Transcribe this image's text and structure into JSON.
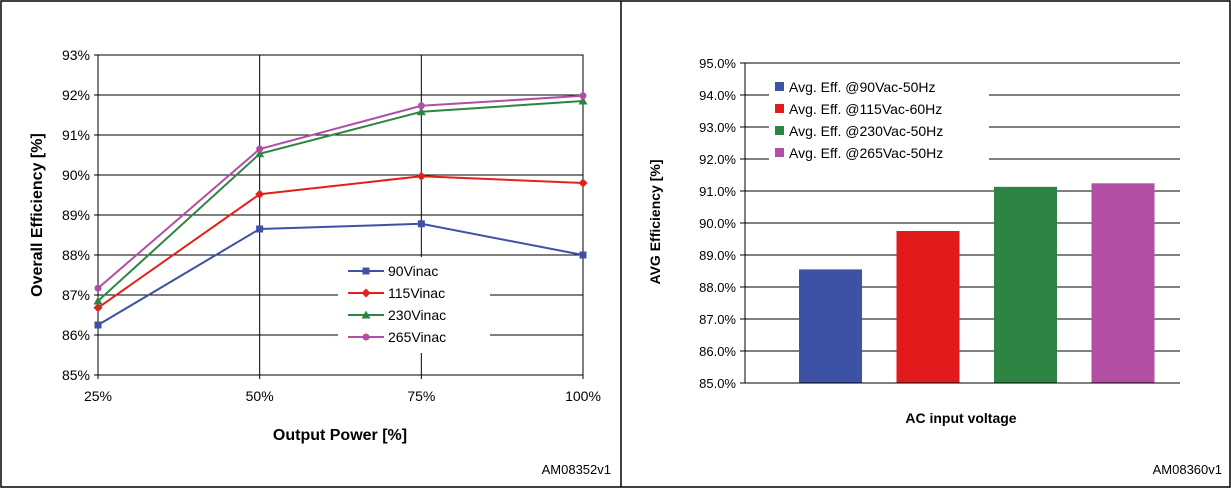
{
  "chart_data": [
    {
      "type": "line",
      "xlabel": "Output Power [%]",
      "ylabel": "Overall Efficiency [%]",
      "x": [
        "25%",
        "50%",
        "75%",
        "100%"
      ],
      "yticks": [
        "85%",
        "86%",
        "87%",
        "88%",
        "89%",
        "90%",
        "91%",
        "92%",
        "93%"
      ],
      "ylim": [
        85,
        93
      ],
      "grid": true,
      "legend": "bottom-right-inside",
      "series": [
        {
          "name": "90Vinac",
          "values": [
            86.25,
            88.65,
            88.78,
            88.0
          ],
          "color": "#3d51a5",
          "marker": "square"
        },
        {
          "name": "115Vinac",
          "values": [
            86.68,
            89.52,
            89.97,
            89.8
          ],
          "color": "#e32119",
          "marker": "diamond"
        },
        {
          "name": "230Vinac",
          "values": [
            86.85,
            90.53,
            91.58,
            91.85
          ],
          "color": "#2e8543",
          "marker": "triangle"
        },
        {
          "name": "265Vinac",
          "values": [
            87.17,
            90.65,
            91.73,
            91.98
          ],
          "color": "#b24fa5",
          "marker": "circle"
        }
      ],
      "code": "AM08352v1"
    },
    {
      "type": "bar",
      "xlabel": "AC input voltage",
      "ylabel": "AVG Efficiency [%]",
      "yticks": [
        "85.0%",
        "86.0%",
        "87.0%",
        "88.0%",
        "89.0%",
        "90.0%",
        "91.0%",
        "92.0%",
        "93.0%",
        "94.0%",
        "95.0%"
      ],
      "ylim": [
        85,
        95
      ],
      "grid": true,
      "legend": "top-left-inside",
      "series": [
        {
          "name": "Avg. Eff. @90Vac-50Hz",
          "value": 88.55,
          "color": "#3d51a5"
        },
        {
          "name": "Avg. Eff. @115Vac-60Hz",
          "value": 89.75,
          "color": "#e21a1c"
        },
        {
          "name": "Avg. Eff. @230Vac-50Hz",
          "value": 91.13,
          "color": "#2e8543"
        },
        {
          "name": "Avg. Eff. @265Vac-50Hz",
          "value": 91.24,
          "color": "#b24fa5"
        }
      ],
      "code": "AM08360v1"
    }
  ]
}
